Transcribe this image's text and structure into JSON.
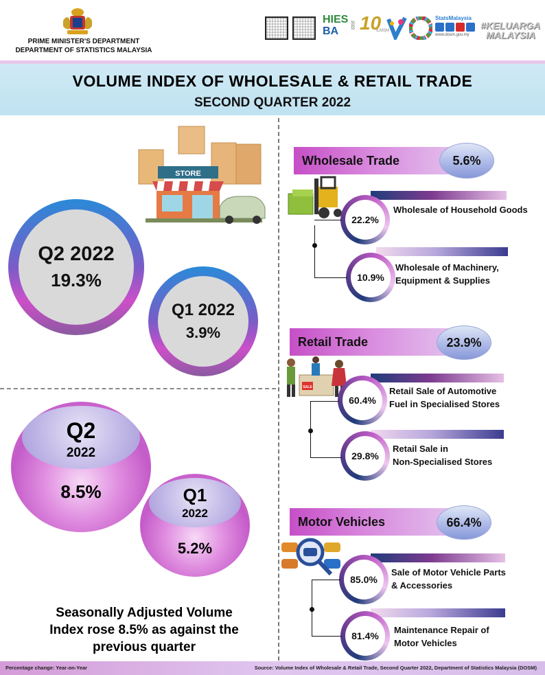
{
  "header": {
    "dept_line1": "PRIME MINISTER'S DEPARTMENT",
    "dept_line2": "DEPARTMENT OF STATISTICS MALAYSIA",
    "logos": {
      "hies_line1": "HIES",
      "hies_line2": "BA",
      "hies_year": "2022",
      "anniv": "10",
      "anniv_sub": "ILMSM",
      "stats_name": "StatsMalaysia",
      "stats_url": "www.dosm.gov.my",
      "keluarga_line1": "#KELUARGA",
      "keluarga_line2": "MALAYSIA"
    }
  },
  "title": {
    "main": "VOLUME INDEX OF WHOLESALE & RETAIL TRADE",
    "sub": "SECOND QUARTER 2022"
  },
  "store_sign": "STORE",
  "yoy": {
    "q2": {
      "label": "Q2 2022",
      "value": "19.3%"
    },
    "q1": {
      "label": "Q1 2022",
      "value": "3.9%"
    }
  },
  "sa": {
    "q2": {
      "label": "Q2",
      "year": "2022",
      "value": "8.5%"
    },
    "q1": {
      "label": "Q1",
      "year": "2022",
      "value": "5.2%"
    },
    "note_line1": "Seasonally  Adjusted Volume",
    "note_line2": "Index rose 8.5% as against the",
    "note_line3": "previous quarter"
  },
  "sectors": [
    {
      "name": "Wholesale Trade",
      "value": "5.6%",
      "subs": [
        {
          "value": "22.2%",
          "line1": "Wholesale  of Household Goods",
          "line2": ""
        },
        {
          "value": "10.9%",
          "line1": "Wholesale  of Machinery,",
          "line2": "Equipment & Supplies"
        }
      ]
    },
    {
      "name": "Retail Trade",
      "value": "23.9%",
      "sale_sign": "SALE",
      "subs": [
        {
          "value": "60.4%",
          "line1": "Retail Sale of Automotive",
          "line2": "Fuel in Specialised Stores"
        },
        {
          "value": "29.8%",
          "line1": "Retail Sale in",
          "line2": "Non-Specialised Stores"
        }
      ]
    },
    {
      "name": "Motor Vehicles",
      "value": "66.4%",
      "subs": [
        {
          "value": "85.0%",
          "line1": "Sale of Motor Vehicle Parts",
          "line2": "& Accessories"
        },
        {
          "value": "81.4%",
          "line1": "Maintenance Repair of",
          "line2": "Motor Vehicles"
        }
      ]
    }
  ],
  "footer": {
    "left": "Percentage change: Year-on-Year",
    "right": "Source: Volume Index of Wholesale & Retail Trade, Second Quarter 2022,  Department of Statistics Malaysia (DOSM)"
  }
}
